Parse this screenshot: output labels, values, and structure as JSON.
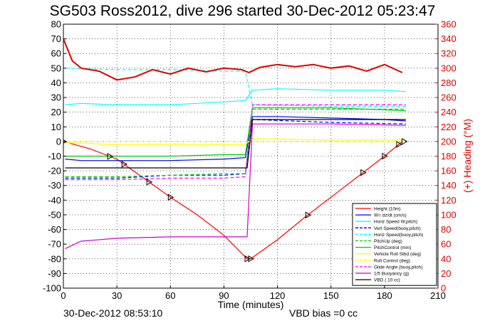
{
  "chart_data": {
    "type": "line",
    "title": "SG503 Ross2012, dive 296 started 30-Dec-2012 05:23:47",
    "xlabel": "Time (minutes)",
    "ylabel_right": "(+) Heading (°M)",
    "xlim": [
      0,
      210
    ],
    "ylim_left": [
      -100,
      80
    ],
    "ylim_right": [
      0,
      360
    ],
    "x_ticks": [
      0,
      30,
      60,
      90,
      120,
      150,
      180,
      210
    ],
    "y_ticks_left": [
      -100,
      -90,
      -80,
      -70,
      -60,
      -50,
      -40,
      -30,
      -20,
      -10,
      0,
      10,
      20,
      30,
      40,
      50,
      60,
      70,
      80
    ],
    "y_ticks_right": [
      0,
      20,
      40,
      60,
      80,
      100,
      120,
      140,
      160,
      180,
      200,
      220,
      240,
      260,
      280,
      300,
      320,
      340,
      360
    ],
    "grid": true,
    "legend_position": "bottom-right",
    "footer_left": "30-Dec-2012 08:53:10",
    "footer_right": "VBD bias =0 cc",
    "series": [
      {
        "name": "Height (10m)",
        "color": "#ff0000",
        "style": "solid",
        "x": [
          0,
          15,
          30,
          45,
          60,
          75,
          90,
          103,
          105,
          120,
          135,
          150,
          165,
          180,
          190
        ],
        "y": [
          0,
          -5,
          -12,
          -25,
          -38,
          -50,
          -64,
          -80,
          -80,
          -67,
          -52,
          -38,
          -24,
          -10,
          0
        ]
      },
      {
        "name": "W= dz/dt (cm/s)",
        "color": "#0000ff",
        "style": "solid",
        "x": [
          1,
          10,
          30,
          60,
          90,
          102,
          106,
          120,
          150,
          180,
          192
        ],
        "y": [
          -12,
          -13,
          -13,
          -13,
          -12,
          -11,
          17,
          17,
          16,
          15,
          14
        ]
      },
      {
        "name": "Horiz Speed W,pitch)",
        "color": "#00ffff",
        "style": "solid",
        "x": [
          1,
          10,
          30,
          60,
          90,
          102,
          106,
          120,
          150,
          180,
          192
        ],
        "y": [
          25,
          26,
          25,
          25,
          27,
          28,
          35,
          36,
          35,
          35,
          34
        ]
      },
      {
        "name": "Vert Speed(buoy,pitch)",
        "color": "#0000ff",
        "style": "dashed",
        "x": [
          1,
          30,
          60,
          90,
          102,
          106,
          150,
          192
        ],
        "y": [
          -25,
          -25,
          -23,
          -23,
          -22,
          15,
          13,
          12
        ]
      },
      {
        "name": "Horiz Speed(buoy,pitch)",
        "color": "#00ffff",
        "style": "dashed",
        "x": [
          1,
          30,
          60,
          90,
          102,
          106,
          150,
          192
        ],
        "y": [
          50,
          49,
          49,
          48,
          48,
          25,
          24,
          24
        ]
      },
      {
        "name": "PitchUp (deg)",
        "color": "#00cc00",
        "style": "dashed",
        "x": [
          1,
          30,
          60,
          90,
          102,
          106,
          150,
          192
        ],
        "y": [
          -24,
          -24,
          -23,
          -22,
          -22,
          22,
          22,
          22
        ]
      },
      {
        "name": "PitchControl (mm)",
        "color": "#00cc00",
        "style": "solid",
        "x": [
          1,
          30,
          60,
          90,
          102,
          106,
          150,
          192
        ],
        "y": [
          -10,
          -10,
          -10,
          -9,
          -9,
          23,
          23,
          21
        ]
      },
      {
        "name": "Vehicle Roll Stbd (deg)",
        "color": "#ffff00",
        "style": "solid",
        "x": [
          1,
          10,
          25,
          35,
          50,
          60,
          90,
          102,
          106,
          150,
          180,
          192
        ],
        "y": [
          -1,
          -1,
          -2,
          -2,
          -2,
          -2,
          -2,
          -2,
          2,
          1,
          1,
          1
        ]
      },
      {
        "name": "Roll Control (deg)",
        "color": "#ffff00",
        "style": "dashed",
        "x": [
          1,
          50,
          102,
          106,
          192
        ],
        "y": [
          0,
          0,
          0,
          0,
          0
        ]
      },
      {
        "name": "Glide Angle (buoy,pitch)",
        "color": "#ff00ff",
        "style": "dashed",
        "x": [
          1,
          30,
          60,
          90,
          102,
          106,
          150,
          192
        ],
        "y": [
          -26,
          -26,
          -25,
          -25,
          -24,
          25,
          25,
          25
        ]
      },
      {
        "name": "1/5 Buoyancy (g)",
        "color": "#cc00cc",
        "style": "solid",
        "x": [
          1,
          10,
          30,
          60,
          90,
          103,
          106,
          150,
          192
        ],
        "y": [
          -73,
          -68,
          -66,
          -65,
          -65,
          -65,
          12,
          12,
          11
        ]
      },
      {
        "name": "VBD ( 10 cc)",
        "color": "#000000",
        "style": "solid",
        "x": [
          1,
          103,
          106,
          192
        ],
        "y": [
          -18,
          -18,
          15,
          15
        ]
      }
    ],
    "heading_series": {
      "name": "Heading",
      "color": "#dd0000",
      "axis": "right",
      "x": [
        0,
        5,
        10,
        20,
        30,
        40,
        50,
        60,
        70,
        80,
        90,
        100,
        104,
        110,
        120,
        130,
        140,
        150,
        160,
        170,
        180,
        190
      ],
      "y": [
        340,
        310,
        300,
        296,
        284,
        288,
        298,
        292,
        300,
        295,
        300,
        298,
        294,
        301,
        305,
        302,
        305,
        300,
        303,
        296,
        305,
        294
      ]
    },
    "markers_x": [
      0,
      26,
      34,
      48,
      60,
      103,
      105,
      137,
      168,
      180,
      188,
      191
    ]
  }
}
